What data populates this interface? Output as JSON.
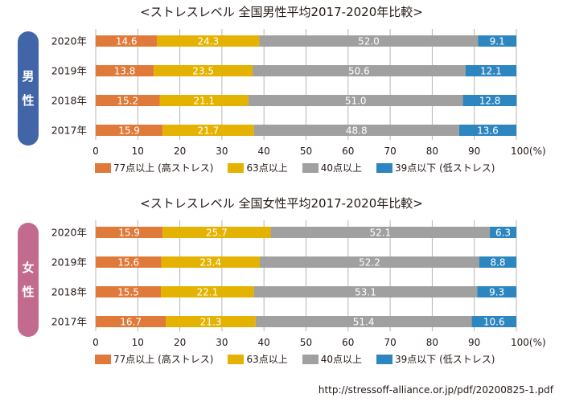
{
  "colors": {
    "male_pill": "#4265a8",
    "female_pill": "#c36b8e",
    "high": "#e07a3a",
    "mid_high": "#e4b200",
    "mid_low": "#a0a0a0",
    "low": "#2e86c1",
    "grid": "#b5b5b5"
  },
  "source": "http://stressoff-alliance.or.jp/pdf/20200825-1.pdf",
  "chart_data": [
    {
      "type": "bar",
      "orientation": "horizontal",
      "stacked": true,
      "title": "<ストレスレベル 全国男性平均2017-2020年比較>",
      "group_label": [
        "男",
        "性"
      ],
      "categories": [
        "2020年",
        "2019年",
        "2018年",
        "2017年"
      ],
      "series": [
        {
          "name": "77点以上 (高ストレス)",
          "key": "high",
          "values": [
            14.6,
            13.8,
            15.2,
            15.9
          ]
        },
        {
          "name": "63点以上",
          "key": "mid_high",
          "values": [
            24.3,
            23.5,
            21.1,
            21.7
          ]
        },
        {
          "name": "40点以上",
          "key": "mid_low",
          "values": [
            52.0,
            50.6,
            51.0,
            48.8
          ]
        },
        {
          "name": "39点以下 (低ストレス)",
          "key": "low",
          "values": [
            9.1,
            12.1,
            12.8,
            13.6
          ]
        }
      ],
      "xlim": [
        0,
        100
      ],
      "xticks": [
        "0",
        "10",
        "20",
        "30",
        "40",
        "50",
        "60",
        "70",
        "80",
        "90",
        "100(%)"
      ],
      "grid": true,
      "legend": "bottom"
    },
    {
      "type": "bar",
      "orientation": "horizontal",
      "stacked": true,
      "title": "<ストレスレベル 全国女性平均2017-2020年比較>",
      "group_label": [
        "女",
        "性"
      ],
      "categories": [
        "2020年",
        "2019年",
        "2018年",
        "2017年"
      ],
      "series": [
        {
          "name": "77点以上 (高ストレス)",
          "key": "high",
          "values": [
            15.9,
            15.6,
            15.5,
            16.7
          ]
        },
        {
          "name": "63点以上",
          "key": "mid_high",
          "values": [
            25.7,
            23.4,
            22.1,
            21.3
          ]
        },
        {
          "name": "40点以上",
          "key": "mid_low",
          "values": [
            52.1,
            52.2,
            53.1,
            51.4
          ]
        },
        {
          "name": "39点以下 (低ストレス)",
          "key": "low",
          "values": [
            6.3,
            8.8,
            9.3,
            10.6
          ]
        }
      ],
      "xlim": [
        0,
        100
      ],
      "xticks": [
        "0",
        "10",
        "20",
        "30",
        "40",
        "50",
        "60",
        "70",
        "80",
        "90",
        "100(%)"
      ],
      "grid": true,
      "legend": "bottom"
    }
  ]
}
